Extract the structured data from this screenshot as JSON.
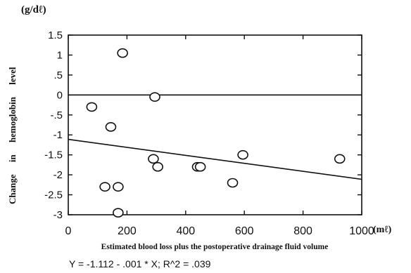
{
  "y_unit": "(g/dℓ)",
  "x_unit": "(mℓ)",
  "equation": "Y = -1.112 - .001 * X; R^2 = .039",
  "chart_data": {
    "type": "scatter",
    "title": "",
    "xlabel": "Estimated blood loss plus the postoperative drainage fluid volume",
    "ylabel": "Change in hemoglobin level",
    "xlim": [
      0,
      1000
    ],
    "ylim": [
      -3,
      1.5
    ],
    "xticks": [
      0,
      200,
      400,
      600,
      800,
      1000
    ],
    "yticks": [
      1.5,
      1,
      0.5,
      0,
      -0.5,
      -1,
      -1.5,
      -2,
      -2.5,
      -3
    ],
    "ytick_labels": [
      "1.5",
      "1",
      ".5",
      "0",
      "-.5",
      "-1",
      "-1.5",
      "-2",
      "-2.5",
      "-3"
    ],
    "points": [
      {
        "x": 80,
        "y": -0.3
      },
      {
        "x": 125,
        "y": -2.3
      },
      {
        "x": 145,
        "y": -0.8
      },
      {
        "x": 170,
        "y": -2.3
      },
      {
        "x": 170,
        "y": -2.95
      },
      {
        "x": 185,
        "y": 1.05
      },
      {
        "x": 290,
        "y": -1.6
      },
      {
        "x": 295,
        "y": -0.05
      },
      {
        "x": 305,
        "y": -1.8
      },
      {
        "x": 440,
        "y": -1.8
      },
      {
        "x": 450,
        "y": -1.8
      },
      {
        "x": 560,
        "y": -2.2
      },
      {
        "x": 595,
        "y": -1.5
      },
      {
        "x": 925,
        "y": -1.6
      }
    ],
    "reference_line_y": 0,
    "regression": {
      "intercept": -1.112,
      "slope": -0.001
    },
    "grid": false
  }
}
